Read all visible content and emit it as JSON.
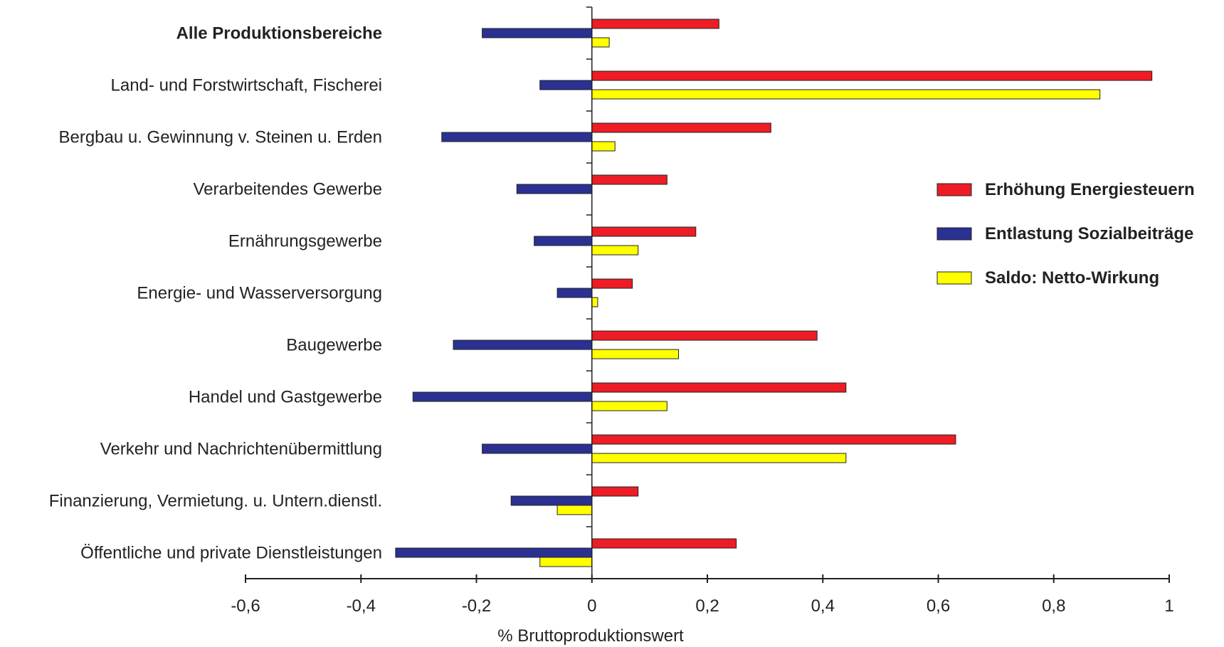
{
  "chart_data": {
    "type": "bar",
    "orientation": "horizontal",
    "categories": [
      "Alle Produktionsbereiche",
      "Land- und Forstwirtschaft, Fischerei",
      "Bergbau u. Gewinnung v. Steinen u. Erden",
      "Verarbeitendes Gewerbe",
      "Ernährungsgewerbe",
      "Energie- und Wasserversorgung",
      "Baugewerbe",
      "Handel und Gastgewerbe",
      "Verkehr und Nachrichtenübermittlung",
      "Finanzierung, Vermietung. u. Untern.dienstl.",
      "Öffentliche und private Dienstleistungen"
    ],
    "bold_categories": [
      "Alle Produktionsbereiche"
    ],
    "series": [
      {
        "name": "Erhöhung Energiesteuern",
        "color": "#ee1c24",
        "values": [
          0.22,
          0.97,
          0.31,
          0.13,
          0.18,
          0.07,
          0.39,
          0.44,
          0.63,
          0.08,
          0.25
        ]
      },
      {
        "name": "Entlastung Sozialbeiträge",
        "color": "#2b3192",
        "values": [
          -0.19,
          -0.09,
          -0.26,
          -0.13,
          -0.1,
          -0.06,
          -0.24,
          -0.31,
          -0.19,
          -0.14,
          -0.34
        ]
      },
      {
        "name": "Saldo: Netto-Wirkung",
        "color": "#ffff00",
        "values": [
          0.03,
          0.88,
          0.04,
          0.0,
          0.08,
          0.01,
          0.15,
          0.13,
          0.44,
          -0.06,
          -0.09
        ]
      }
    ],
    "xlabel": "% Bruttoproduktionswert",
    "xlim": [
      -0.6,
      1.0
    ],
    "xticks": [
      -0.6,
      -0.4,
      -0.2,
      0,
      0.2,
      0.4,
      0.6,
      0.8,
      1.0
    ],
    "xtick_labels": [
      "-0,6",
      "-0,4",
      "-0,2",
      "0",
      "0,2",
      "0,4",
      "0,6",
      "0,8",
      "1"
    ],
    "grid": false,
    "legend_position": "right"
  }
}
